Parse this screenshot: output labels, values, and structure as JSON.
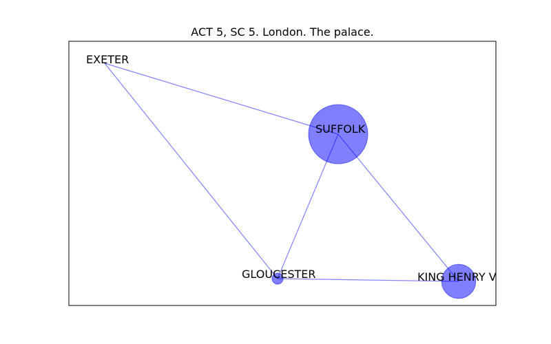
{
  "title": "ACT 5, SC 5. London. The palace.",
  "colors": {
    "node_fill": "#0000ff",
    "edge": "#0000ff",
    "frame": "#000000",
    "text": "#000000"
  },
  "graph": {
    "nodes": [
      {
        "id": "exeter",
        "label": "EXETER",
        "weight": 0
      },
      {
        "id": "suffolk",
        "label": "SUFFOLK",
        "weight": 1.0
      },
      {
        "id": "gloucester",
        "label": "GLOUCESTER",
        "weight": 0.035
      },
      {
        "id": "king-henry",
        "label": "KING HENRY V",
        "weight": 0.33
      }
    ],
    "edges": [
      {
        "source": "exeter",
        "target": "suffolk"
      },
      {
        "source": "exeter",
        "target": "gloucester"
      },
      {
        "source": "suffolk",
        "target": "gloucester"
      },
      {
        "source": "suffolk",
        "target": "king-henry"
      },
      {
        "source": "gloucester",
        "target": "king-henry"
      }
    ]
  }
}
